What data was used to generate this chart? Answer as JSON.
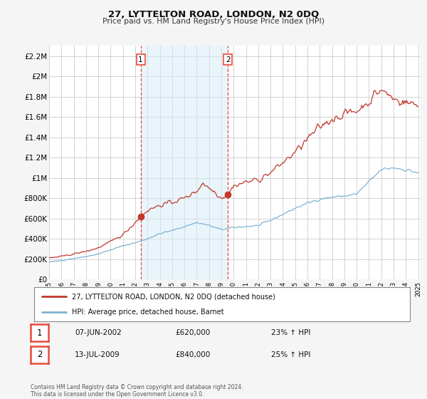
{
  "title": "27, LYTTELTON ROAD, LONDON, N2 0DQ",
  "subtitle": "Price paid vs. HM Land Registry's House Price Index (HPI)",
  "transaction1_date": "07-JUN-2002",
  "transaction1_price": 620000,
  "transaction1_hpi": "23%",
  "transaction1_year": 2002.44,
  "transaction2_date": "13-JUL-2009",
  "transaction2_price": 840000,
  "transaction2_hpi": "25%",
  "transaction2_year": 2009.54,
  "line1_label": "27, LYTTELTON ROAD, LONDON, N2 0DQ (detached house)",
  "line2_label": "HPI: Average price, detached house, Barnet",
  "line1_color": "#c0392b",
  "line2_color": "#7fb3d3",
  "background_color": "#f5f5f5",
  "plot_bg_color": "#ffffff",
  "grid_color": "#cccccc",
  "vline_color": "#e74c3c",
  "shade_color": "#d6eaf8",
  "footer": "Contains HM Land Registry data © Crown copyright and database right 2024.\nThis data is licensed under the Open Government Licence v3.0."
}
